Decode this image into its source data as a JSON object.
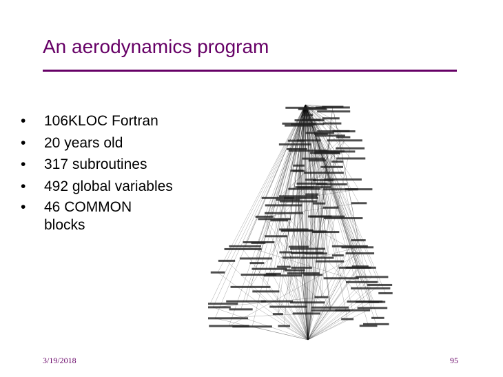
{
  "header": {
    "title": "An aerodynamics program"
  },
  "bullets": [
    "106KLOC Fortran",
    "20 years old",
    "317 subroutines",
    "492 global variables",
    "46 COMMON blocks"
  ],
  "footer": {
    "date": "3/19/2018",
    "page": "95"
  }
}
